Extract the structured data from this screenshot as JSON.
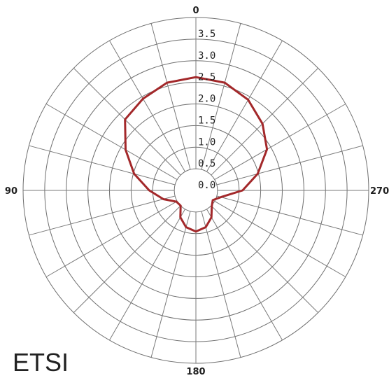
{
  "chart_data": {
    "type": "polar",
    "r_range": [
      0,
      4
    ],
    "radial_tick_labels": [
      "0.0",
      "0.5",
      "1.0",
      "1.5",
      "2.0",
      "2.5",
      "3.0",
      "3.5"
    ],
    "angle_tick_labels": [
      {
        "angle": 0,
        "label": "0"
      },
      {
        "angle": 90,
        "label": "90"
      },
      {
        "angle": 180,
        "label": "180"
      },
      {
        "angle": 270,
        "label": "270"
      }
    ],
    "angle_step": 15,
    "grid": true,
    "series": [
      {
        "color": "#a3282a",
        "points": [
          {
            "angle": 0,
            "r": 2.62
          },
          {
            "angle": 15,
            "r": 2.58
          },
          {
            "angle": 30,
            "r": 2.45
          },
          {
            "angle": 45,
            "r": 2.32
          },
          {
            "angle": 60,
            "r": 1.88
          },
          {
            "angle": 75,
            "r": 1.48
          },
          {
            "angle": 90,
            "r": 1.08
          },
          {
            "angle": 105,
            "r": 0.78
          },
          {
            "angle": 120,
            "r": 0.52
          },
          {
            "angle": 135,
            "r": 0.5
          },
          {
            "angle": 150,
            "r": 0.72
          },
          {
            "angle": 165,
            "r": 0.88
          },
          {
            "angle": 180,
            "r": 0.95
          },
          {
            "angle": 195,
            "r": 0.88
          },
          {
            "angle": 210,
            "r": 0.72
          },
          {
            "angle": 225,
            "r": 0.52
          },
          {
            "angle": 240,
            "r": 0.45
          },
          {
            "angle": 255,
            "r": 0.6
          },
          {
            "angle": 270,
            "r": 1.08
          },
          {
            "angle": 285,
            "r": 1.48
          },
          {
            "angle": 300,
            "r": 1.9
          },
          {
            "angle": 315,
            "r": 2.18
          },
          {
            "angle": 330,
            "r": 2.42
          },
          {
            "angle": 345,
            "r": 2.58
          }
        ]
      }
    ]
  },
  "watermark": "ETSI"
}
